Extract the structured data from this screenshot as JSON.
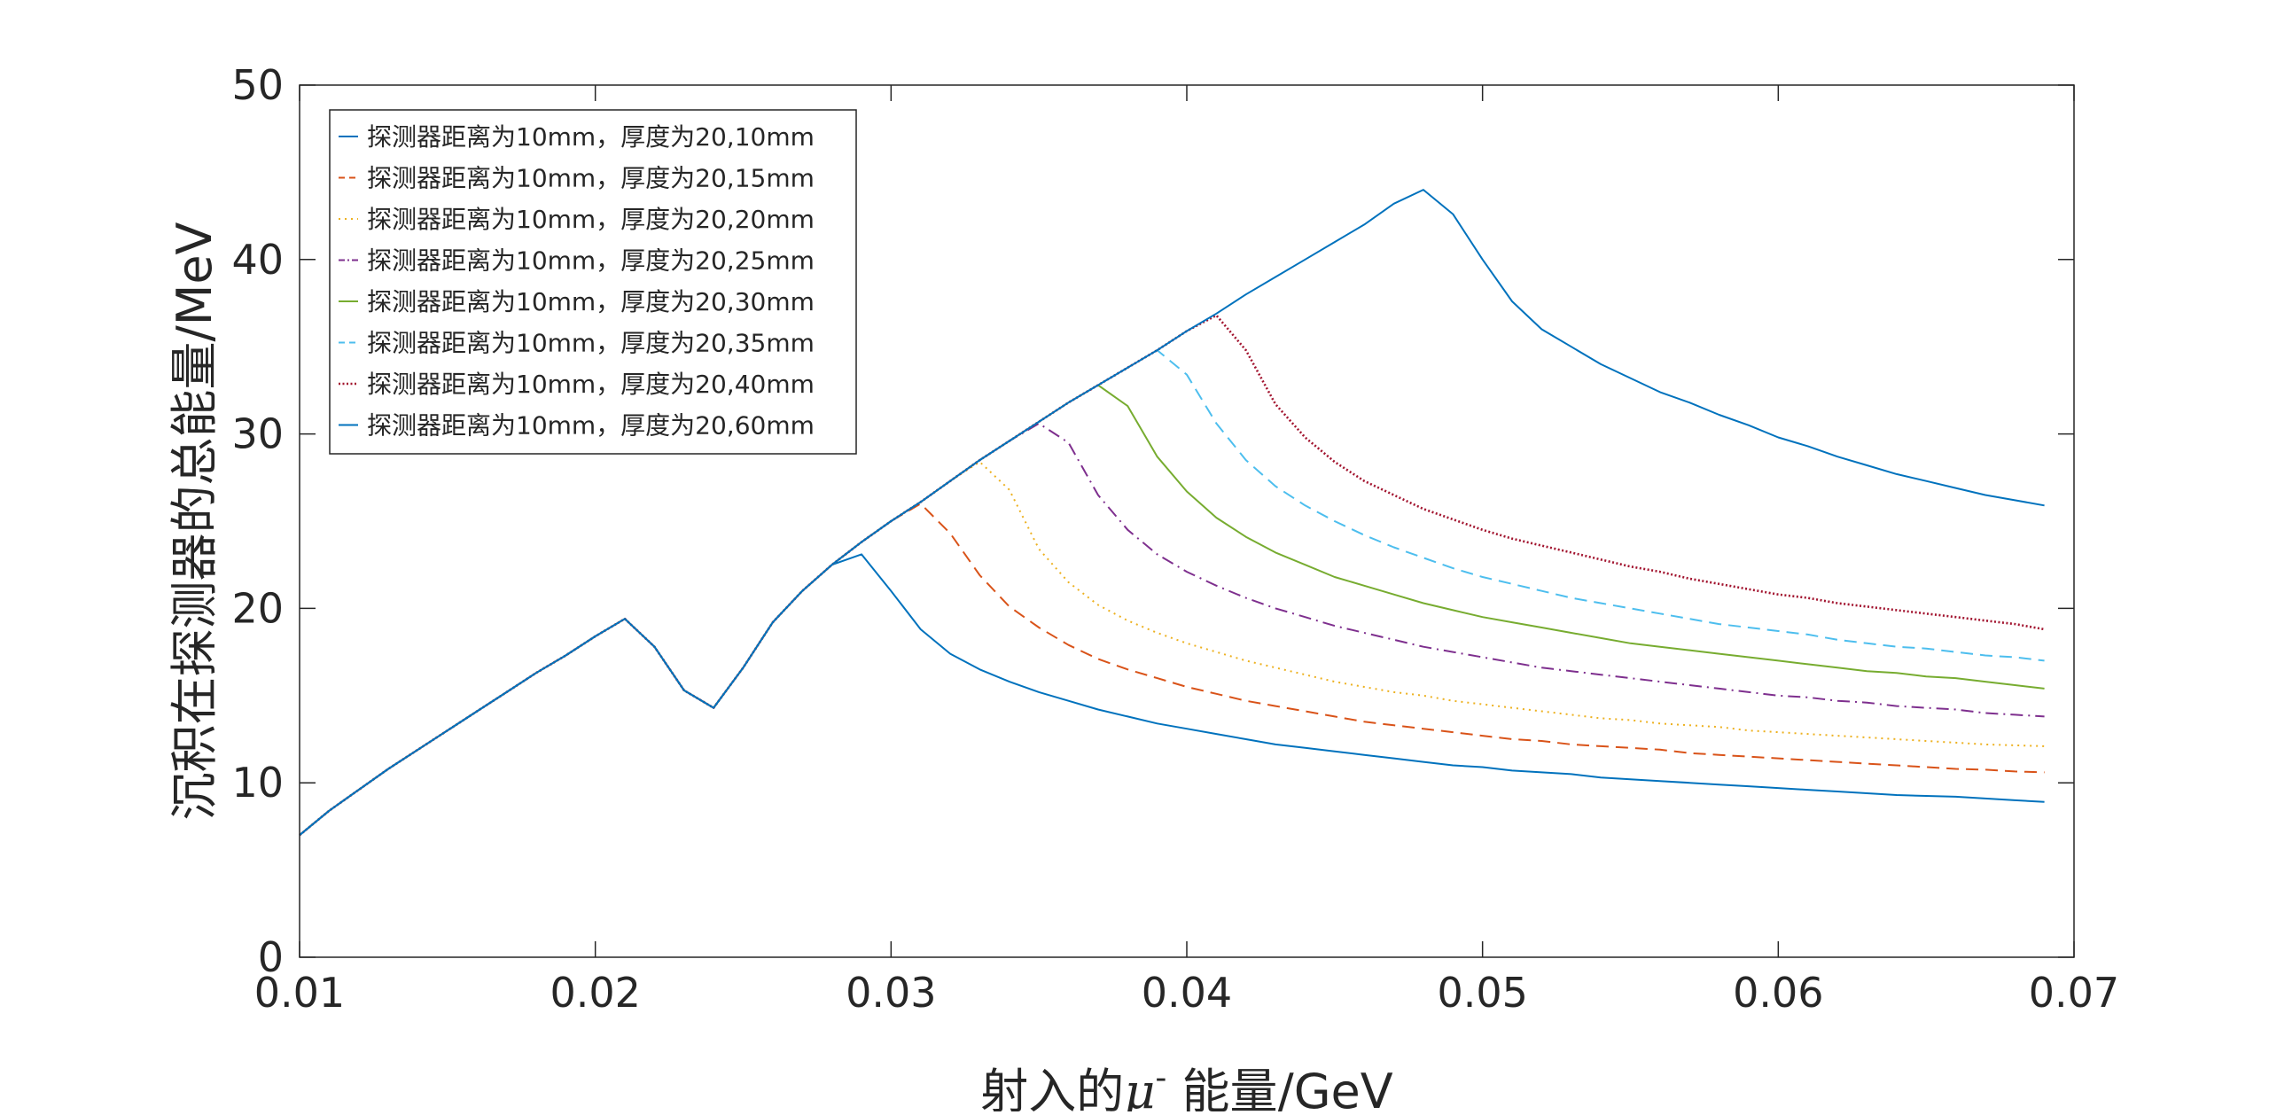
{
  "chart_data": {
    "type": "line",
    "title": "",
    "xlabel": "射入的μ⁻ 能量/GeV",
    "xlabel_parts": {
      "prefix": "射入的",
      "symbol": "μ",
      "superscript": "-",
      "suffix": " 能量/GeV"
    },
    "ylabel": "沉积在探测器的总能量/MeV",
    "xlim": [
      0.01,
      0.07
    ],
    "ylim": [
      0,
      50
    ],
    "xticks": [
      "0.01",
      "0.02",
      "0.03",
      "0.04",
      "0.05",
      "0.06",
      "0.07"
    ],
    "yticks": [
      "0",
      "10",
      "20",
      "30",
      "40",
      "50"
    ],
    "xtick_values": [
      0.01,
      0.02,
      0.03,
      0.04,
      0.05,
      0.06,
      0.07
    ],
    "ytick_values": [
      0,
      10,
      20,
      30,
      40,
      50
    ],
    "grid": false,
    "legend_position": "top-left",
    "x": [
      0.01,
      0.011,
      0.012,
      0.013,
      0.014,
      0.015,
      0.016,
      0.017,
      0.018,
      0.019,
      0.02,
      0.021,
      0.022,
      0.023,
      0.024,
      0.025,
      0.026,
      0.027,
      0.028,
      0.029,
      0.03,
      0.031,
      0.032,
      0.033,
      0.034,
      0.035,
      0.036,
      0.037,
      0.038,
      0.039,
      0.04,
      0.041,
      0.042,
      0.043,
      0.044,
      0.045,
      0.046,
      0.047,
      0.048,
      0.049,
      0.05,
      0.051,
      0.052,
      0.053,
      0.054,
      0.055,
      0.056,
      0.057,
      0.058,
      0.059,
      0.06,
      0.061,
      0.062,
      0.063,
      0.064,
      0.065,
      0.066,
      0.067,
      0.068,
      0.069
    ],
    "series": [
      {
        "name": "探测器距离为10mm，厚度为20,10mm",
        "color": "#0072BD",
        "dash": "solid",
        "values": [
          7.0,
          8.4,
          9.6,
          10.8,
          11.9,
          13.0,
          14.1,
          15.2,
          16.3,
          17.3,
          18.4,
          19.4,
          17.8,
          15.3,
          14.3,
          16.6,
          19.2,
          21.0,
          22.5,
          23.1,
          21.0,
          18.8,
          17.4,
          16.5,
          15.8,
          15.2,
          14.7,
          14.2,
          13.8,
          13.4,
          13.1,
          12.8,
          12.5,
          12.2,
          12.0,
          11.8,
          11.6,
          11.4,
          11.2,
          11.0,
          10.9,
          10.7,
          10.6,
          10.5,
          10.3,
          10.2,
          10.1,
          10.0,
          9.9,
          9.8,
          9.7,
          9.6,
          9.5,
          9.4,
          9.3,
          9.25,
          9.2,
          9.1,
          9.0,
          8.9
        ]
      },
      {
        "name": "探测器距离为10mm，厚度为20,15mm",
        "color": "#D95319",
        "dash": "dashed",
        "values": [
          7.0,
          8.4,
          9.6,
          10.8,
          11.9,
          13.0,
          14.1,
          15.2,
          16.3,
          17.3,
          18.4,
          19.4,
          17.8,
          15.3,
          14.3,
          16.6,
          19.2,
          21.0,
          22.5,
          23.8,
          25.0,
          26.0,
          24.3,
          21.9,
          20.1,
          18.9,
          17.9,
          17.1,
          16.5,
          16.0,
          15.5,
          15.1,
          14.7,
          14.4,
          14.1,
          13.8,
          13.5,
          13.3,
          13.1,
          12.9,
          12.7,
          12.5,
          12.4,
          12.2,
          12.1,
          12.0,
          11.9,
          11.7,
          11.6,
          11.5,
          11.4,
          11.3,
          11.2,
          11.1,
          11.0,
          10.9,
          10.8,
          10.75,
          10.65,
          10.6
        ]
      },
      {
        "name": "探测器距离为10mm，厚度为20,20mm",
        "color": "#EDB120",
        "dash": "dotted",
        "values": [
          7.0,
          8.4,
          9.6,
          10.8,
          11.9,
          13.0,
          14.1,
          15.2,
          16.3,
          17.3,
          18.4,
          19.4,
          17.8,
          15.3,
          14.3,
          16.6,
          19.2,
          21.0,
          22.5,
          23.8,
          25.0,
          26.1,
          27.3,
          28.4,
          26.8,
          23.4,
          21.5,
          20.2,
          19.3,
          18.6,
          18.0,
          17.5,
          17.0,
          16.6,
          16.2,
          15.8,
          15.5,
          15.2,
          15.0,
          14.7,
          14.5,
          14.3,
          14.1,
          13.9,
          13.7,
          13.6,
          13.4,
          13.3,
          13.2,
          13.0,
          12.9,
          12.8,
          12.7,
          12.6,
          12.5,
          12.4,
          12.3,
          12.2,
          12.15,
          12.1
        ]
      },
      {
        "name": "探测器距离为10mm，厚度为20,25mm",
        "color": "#7E2F8E",
        "dash": "dashdot",
        "values": [
          7.0,
          8.4,
          9.6,
          10.8,
          11.9,
          13.0,
          14.1,
          15.2,
          16.3,
          17.3,
          18.4,
          19.4,
          17.8,
          15.3,
          14.3,
          16.6,
          19.2,
          21.0,
          22.5,
          23.8,
          25.0,
          26.1,
          27.3,
          28.5,
          29.6,
          30.6,
          29.5,
          26.5,
          24.5,
          23.1,
          22.1,
          21.3,
          20.6,
          20.0,
          19.5,
          19.0,
          18.6,
          18.2,
          17.8,
          17.5,
          17.2,
          16.9,
          16.6,
          16.4,
          16.2,
          16.0,
          15.8,
          15.6,
          15.4,
          15.2,
          15.0,
          14.9,
          14.7,
          14.6,
          14.4,
          14.3,
          14.2,
          14.0,
          13.9,
          13.8
        ]
      },
      {
        "name": "探测器距离为10mm，厚度为20,30mm",
        "color": "#77AC30",
        "dash": "solid",
        "values": [
          7.0,
          8.4,
          9.6,
          10.8,
          11.9,
          13.0,
          14.1,
          15.2,
          16.3,
          17.3,
          18.4,
          19.4,
          17.8,
          15.3,
          14.3,
          16.6,
          19.2,
          21.0,
          22.5,
          23.8,
          25.0,
          26.1,
          27.3,
          28.5,
          29.6,
          30.7,
          31.8,
          32.8,
          31.6,
          28.7,
          26.7,
          25.2,
          24.1,
          23.2,
          22.5,
          21.8,
          21.3,
          20.8,
          20.3,
          19.9,
          19.5,
          19.2,
          18.9,
          18.6,
          18.3,
          18.0,
          17.8,
          17.6,
          17.4,
          17.2,
          17.0,
          16.8,
          16.6,
          16.4,
          16.3,
          16.1,
          16.0,
          15.8,
          15.6,
          15.4
        ]
      },
      {
        "name": "探测器距离为10mm，厚度为20,35mm",
        "color": "#4DBEEE",
        "dash": "dashed",
        "values": [
          7.0,
          8.4,
          9.6,
          10.8,
          11.9,
          13.0,
          14.1,
          15.2,
          16.3,
          17.3,
          18.4,
          19.4,
          17.8,
          15.3,
          14.3,
          16.6,
          19.2,
          21.0,
          22.5,
          23.8,
          25.0,
          26.1,
          27.3,
          28.5,
          29.6,
          30.7,
          31.8,
          32.8,
          33.8,
          34.8,
          33.4,
          30.6,
          28.5,
          27.0,
          25.9,
          25.0,
          24.2,
          23.5,
          22.9,
          22.3,
          21.8,
          21.4,
          21.0,
          20.6,
          20.3,
          20.0,
          19.7,
          19.4,
          19.1,
          18.9,
          18.7,
          18.5,
          18.2,
          18.0,
          17.8,
          17.7,
          17.5,
          17.3,
          17.2,
          17.0
        ]
      },
      {
        "name": "探测器距离为10mm，厚度为20,40mm",
        "color": "#A2142F",
        "dash": "densedot",
        "values": [
          7.0,
          8.4,
          9.6,
          10.8,
          11.9,
          13.0,
          14.1,
          15.2,
          16.3,
          17.3,
          18.4,
          19.4,
          17.8,
          15.3,
          14.3,
          16.6,
          19.2,
          21.0,
          22.5,
          23.8,
          25.0,
          26.1,
          27.3,
          28.5,
          29.6,
          30.7,
          31.8,
          32.8,
          33.8,
          34.8,
          35.9,
          36.8,
          34.8,
          31.7,
          29.8,
          28.4,
          27.3,
          26.5,
          25.7,
          25.1,
          24.5,
          24.0,
          23.6,
          23.2,
          22.8,
          22.4,
          22.1,
          21.7,
          21.4,
          21.1,
          20.8,
          20.6,
          20.3,
          20.1,
          19.9,
          19.7,
          19.5,
          19.3,
          19.1,
          18.8
        ]
      },
      {
        "name": "探测器距离为10mm，厚度为20,60mm",
        "color": "#0072BD",
        "dash": "solid",
        "values": [
          7.0,
          8.4,
          9.6,
          10.8,
          11.9,
          13.0,
          14.1,
          15.2,
          16.3,
          17.3,
          18.4,
          19.4,
          17.8,
          15.3,
          14.3,
          16.6,
          19.2,
          21.0,
          22.5,
          23.8,
          25.0,
          26.1,
          27.3,
          28.5,
          29.6,
          30.7,
          31.8,
          32.8,
          33.8,
          34.8,
          35.9,
          36.9,
          38.0,
          39.0,
          40.0,
          41.0,
          42.0,
          43.2,
          44.0,
          42.6,
          40.0,
          37.6,
          36.0,
          35.0,
          34.0,
          33.2,
          32.4,
          31.8,
          31.1,
          30.5,
          29.8,
          29.3,
          28.7,
          28.2,
          27.7,
          27.3,
          26.9,
          26.5,
          26.2,
          25.9
        ]
      }
    ]
  }
}
